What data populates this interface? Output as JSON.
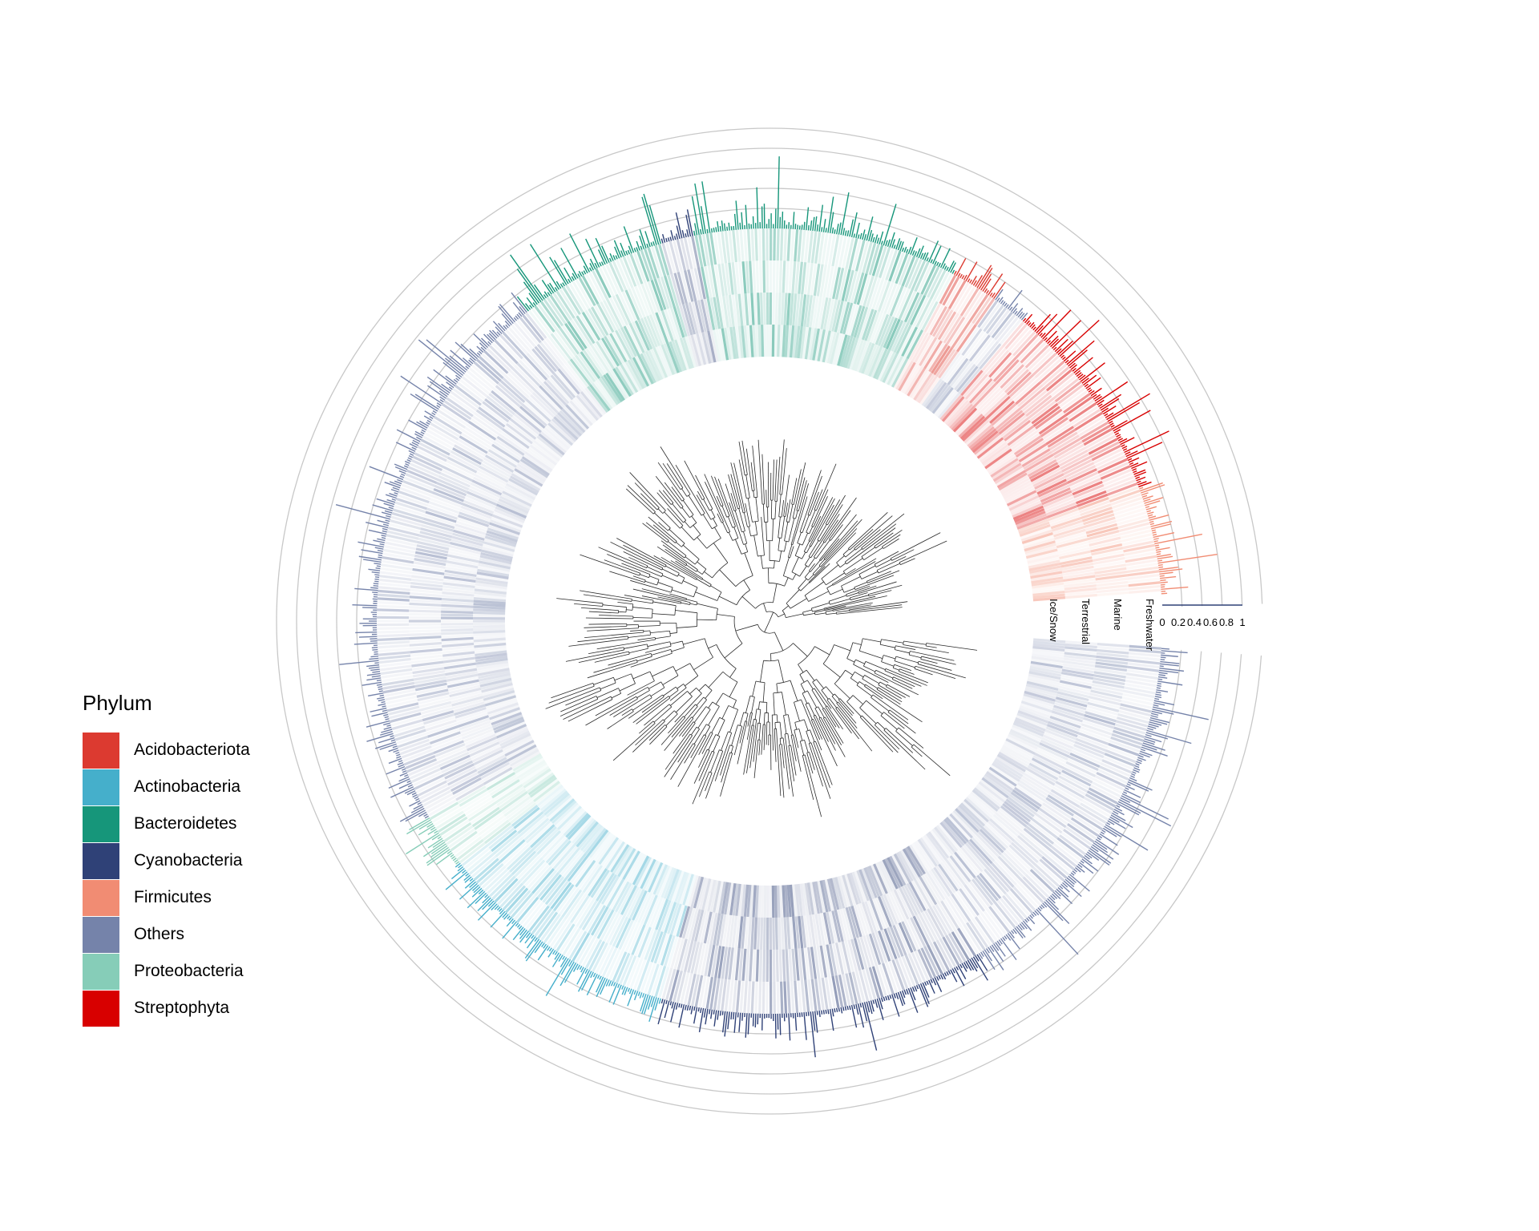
{
  "chart_data": {
    "type": "circular-phylogenetic-tree",
    "title": "",
    "legend": {
      "title": "Phylum",
      "placement": "left",
      "entries": [
        {
          "label": "Acidobacteriota",
          "color": "#DC3A30"
        },
        {
          "label": "Actinobacteria",
          "color": "#45AFCB"
        },
        {
          "label": "Bacteroidetes",
          "color": "#16967A"
        },
        {
          "label": "Cyanobacteria",
          "color": "#2F4177"
        },
        {
          "label": "Firmicutes",
          "color": "#F18C73"
        },
        {
          "label": "Others",
          "color": "#7583AA"
        },
        {
          "label": "Proteobacteria",
          "color": "#86CDB8"
        },
        {
          "label": "Streptophyta",
          "color": "#D80000"
        }
      ]
    },
    "heatmap_rings": [
      "Freshwater",
      "Marine",
      "Terrestrial",
      "Ice/Snow"
    ],
    "bar_axis": {
      "ticks": [
        "0",
        "0.2",
        "0.4",
        "0.6",
        "0.8",
        "1"
      ],
      "range": [
        0,
        1
      ]
    },
    "clade_sectors": [
      {
        "phylum": "Firmicutes",
        "start_deg": -20,
        "end_deg": -4
      },
      {
        "phylum": "Streptophyta",
        "start_deg": -50,
        "end_deg": -20
      },
      {
        "phylum": "Others",
        "start_deg": -55,
        "end_deg": -50
      },
      {
        "phylum": "Acidobacteriota",
        "start_deg": -62,
        "end_deg": -55
      },
      {
        "phylum": "Bacteroidetes",
        "start_deg": -101,
        "end_deg": -62
      },
      {
        "phylum": "Cyanobacteria",
        "start_deg": -106,
        "end_deg": -101
      },
      {
        "phylum": "Bacteroidetes",
        "start_deg": -128,
        "end_deg": -106
      },
      {
        "phylum": "Others",
        "start_deg": -210,
        "end_deg": -128
      },
      {
        "phylum": "Proteobacteria",
        "start_deg": -218,
        "end_deg": -210
      },
      {
        "phylum": "Actinobacteria",
        "start_deg": -254,
        "end_deg": -218
      },
      {
        "phylum": "Cyanobacteria",
        "start_deg": -302,
        "end_deg": -254
      },
      {
        "phylum": "Others",
        "start_deg": -356,
        "end_deg": -302
      }
    ]
  }
}
